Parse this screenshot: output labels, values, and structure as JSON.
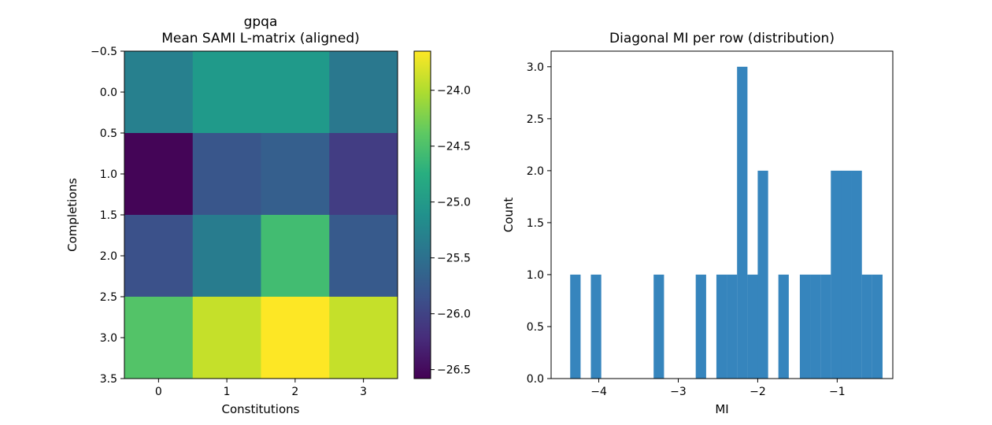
{
  "chart_data": [
    {
      "type": "heatmap",
      "title": "gpqa",
      "subtitle": "Mean SAMI L-matrix (aligned)",
      "xlabel": "Constitutions",
      "ylabel": "Completions",
      "x_ticks": [
        "0",
        "1",
        "2",
        "3"
      ],
      "y_ticks": [
        "−0.5",
        "0.0",
        "0.5",
        "1.0",
        "1.5",
        "2.0",
        "2.5",
        "3.0",
        "3.5"
      ],
      "colormap": "viridis",
      "values": [
        [
          -25.3,
          -25.0,
          -25.0,
          -25.4
        ],
        [
          -26.55,
          -25.8,
          -25.7,
          -26.05
        ],
        [
          -25.85,
          -25.35,
          -24.55,
          -25.75
        ],
        [
          -24.45,
          -23.9,
          -23.65,
          -23.9
        ]
      ],
      "colorbar": {
        "min": -26.58,
        "max": -23.65,
        "ticks": [
          -24.0,
          -24.5,
          -25.0,
          -25.5,
          -26.0,
          -26.5
        ],
        "tick_labels": [
          "−24.0",
          "−24.5",
          "−25.0",
          "−25.5",
          "−26.0",
          "−26.5"
        ]
      }
    },
    {
      "type": "bar",
      "subtype": "histogram",
      "title": "Diagonal MI per row (distribution)",
      "xlabel": "MI",
      "ylabel": "Count",
      "xlim": [
        -4.6,
        -0.3
      ],
      "ylim": [
        0,
        3.15
      ],
      "color": "#3685bd",
      "bin_width": 0.131,
      "bins": [
        {
          "x0": -4.36,
          "count": 1
        },
        {
          "x0": -4.1,
          "count": 1
        },
        {
          "x0": -3.31,
          "count": 1
        },
        {
          "x0": -2.78,
          "count": 1
        },
        {
          "x0": -2.52,
          "count": 1
        },
        {
          "x0": -2.39,
          "count": 1
        },
        {
          "x0": -2.26,
          "count": 3
        },
        {
          "x0": -2.13,
          "count": 1
        },
        {
          "x0": -2.0,
          "count": 2
        },
        {
          "x0": -1.74,
          "count": 1
        },
        {
          "x0": -1.47,
          "count": 1
        },
        {
          "x0": -1.34,
          "count": 1
        },
        {
          "x0": -1.21,
          "count": 1
        },
        {
          "x0": -1.08,
          "count": 2
        },
        {
          "x0": -0.95,
          "count": 2
        },
        {
          "x0": -0.82,
          "count": 2
        },
        {
          "x0": -0.69,
          "count": 1
        },
        {
          "x0": -0.56,
          "count": 1
        }
      ],
      "x_ticks": [
        -4,
        -3,
        -2,
        -1
      ],
      "x_tick_labels": [
        "−4",
        "−3",
        "−2",
        "−1"
      ],
      "y_ticks": [
        0.0,
        0.5,
        1.0,
        1.5,
        2.0,
        2.5,
        3.0
      ],
      "y_tick_labels": [
        "0.0",
        "0.5",
        "1.0",
        "1.5",
        "2.0",
        "2.5",
        "3.0"
      ]
    }
  ]
}
